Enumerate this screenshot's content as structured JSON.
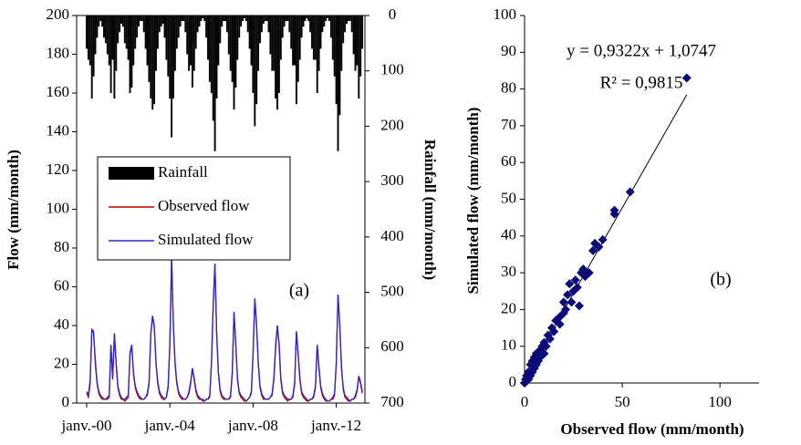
{
  "chart_data": [
    {
      "type": "line",
      "categories": [
        "janv.-00",
        null,
        null,
        null,
        null,
        null,
        null,
        null,
        null,
        null,
        null,
        null,
        null,
        null,
        null,
        null,
        null,
        null,
        null,
        null,
        null,
        null,
        null,
        null,
        null,
        null,
        null,
        null,
        null,
        null,
        null,
        null,
        null,
        null,
        null,
        null,
        null,
        null,
        null,
        null,
        null,
        null,
        null,
        null,
        null,
        null,
        null,
        null,
        "janv.-04",
        null,
        null,
        null,
        null,
        null,
        null,
        null,
        null,
        null,
        null,
        null,
        null,
        null,
        null,
        null,
        null,
        null,
        null,
        null,
        null,
        null,
        null,
        null,
        null,
        null,
        null,
        null,
        null,
        null,
        null,
        null,
        null,
        null,
        null,
        null,
        null,
        null,
        null,
        null,
        null,
        null,
        null,
        null,
        null,
        null,
        null,
        null,
        "janv.-08",
        null,
        null,
        null,
        null,
        null,
        null,
        null,
        null,
        null,
        null,
        null,
        null,
        null,
        null,
        null,
        null,
        null,
        null,
        null,
        null,
        null,
        null,
        null,
        null,
        null,
        null,
        null,
        null,
        null,
        null,
        null,
        null,
        null,
        null,
        null,
        null,
        null,
        null,
        null,
        null,
        null,
        null,
        null,
        null,
        null,
        null,
        null,
        "janv.-12",
        null,
        null,
        null,
        null,
        null,
        null,
        null,
        null,
        null,
        null,
        null,
        null,
        null,
        null,
        null
      ],
      "series": [
        {
          "name": "Rainfall",
          "type": "bar",
          "axis": "y2",
          "color": "#000000",
          "values": [
            60,
            80,
            90,
            150,
            110,
            70,
            40,
            20,
            10,
            20,
            40,
            50,
            70,
            90,
            140,
            80,
            150,
            100,
            50,
            30,
            15,
            20,
            50,
            60,
            80,
            140,
            130,
            90,
            60,
            40,
            20,
            10,
            10,
            30,
            60,
            90,
            120,
            150,
            170,
            160,
            100,
            60,
            30,
            20,
            15,
            40,
            80,
            110,
            150,
            220,
            150,
            100,
            60,
            40,
            20,
            10,
            10,
            30,
            70,
            100,
            90,
            130,
            100,
            60,
            30,
            20,
            10,
            5,
            10,
            40,
            80,
            120,
            140,
            190,
            245,
            150,
            90,
            50,
            20,
            10,
            10,
            30,
            70,
            100,
            120,
            170,
            130,
            80,
            40,
            20,
            10,
            5,
            10,
            30,
            60,
            90,
            140,
            200,
            160,
            100,
            50,
            30,
            15,
            10,
            10,
            30,
            70,
            100,
            100,
            150,
            170,
            140,
            80,
            40,
            20,
            10,
            10,
            30,
            60,
            90,
            90,
            160,
            120,
            80,
            40,
            20,
            10,
            5,
            10,
            30,
            60,
            80,
            80,
            140,
            100,
            60,
            30,
            20,
            10,
            5,
            10,
            40,
            80,
            110,
            160,
            245,
            180,
            100,
            50,
            30,
            15,
            10,
            10,
            30,
            70,
            100,
            90,
            150,
            110,
            60
          ]
        },
        {
          "name": "Observed flow",
          "color": "#c00000",
          "values": [
            5,
            3,
            10,
            38,
            37,
            20,
            10,
            5,
            3,
            2,
            2,
            2,
            2,
            3,
            30,
            12,
            36,
            20,
            8,
            4,
            2,
            2,
            1,
            2,
            3,
            25,
            30,
            15,
            8,
            5,
            3,
            2,
            2,
            2,
            3,
            4,
            10,
            35,
            45,
            40,
            20,
            10,
            5,
            3,
            2,
            2,
            3,
            8,
            30,
            75,
            40,
            20,
            10,
            5,
            3,
            2,
            2,
            2,
            3,
            5,
            10,
            18,
            12,
            6,
            3,
            2,
            2,
            1,
            1,
            2,
            2,
            3,
            20,
            50,
            72,
            35,
            15,
            6,
            3,
            2,
            2,
            2,
            2,
            3,
            15,
            47,
            30,
            12,
            5,
            3,
            2,
            1,
            1,
            2,
            3,
            5,
            25,
            54,
            40,
            20,
            8,
            4,
            2,
            2,
            2,
            2,
            3,
            4,
            12,
            28,
            40,
            30,
            12,
            5,
            3,
            2,
            1,
            2,
            2,
            3,
            10,
            37,
            25,
            12,
            5,
            3,
            2,
            1,
            1,
            2,
            2,
            3,
            8,
            30,
            18,
            8,
            4,
            2,
            1,
            1,
            1,
            2,
            2,
            4,
            20,
            56,
            40,
            18,
            7,
            3,
            2,
            1,
            1,
            2,
            2,
            3,
            6,
            14,
            10,
            5
          ]
        },
        {
          "name": "Simulated flow",
          "color": "#2828c8",
          "values": [
            6,
            4,
            12,
            38,
            36,
            22,
            11,
            6,
            4,
            3,
            2,
            2,
            3,
            4,
            30,
            13,
            36,
            21,
            9,
            5,
            3,
            2,
            2,
            3,
            4,
            26,
            30,
            16,
            9,
            6,
            4,
            3,
            2,
            2,
            3,
            5,
            11,
            36,
            45,
            39,
            21,
            11,
            6,
            4,
            3,
            2,
            3,
            9,
            31,
            75,
            41,
            21,
            11,
            6,
            4,
            3,
            2,
            2,
            3,
            6,
            11,
            18,
            13,
            7,
            4,
            3,
            2,
            2,
            1,
            2,
            2,
            4,
            21,
            51,
            72,
            36,
            16,
            7,
            4,
            3,
            2,
            2,
            2,
            4,
            16,
            47,
            31,
            13,
            6,
            4,
            3,
            2,
            1,
            2,
            3,
            6,
            26,
            54,
            41,
            21,
            9,
            5,
            3,
            2,
            2,
            2,
            3,
            5,
            13,
            30,
            40,
            31,
            13,
            6,
            4,
            3,
            2,
            2,
            2,
            4,
            11,
            37,
            26,
            13,
            6,
            4,
            3,
            2,
            1,
            2,
            2,
            4,
            9,
            30,
            19,
            9,
            5,
            3,
            2,
            1,
            1,
            2,
            3,
            5,
            21,
            56,
            41,
            19,
            8,
            4,
            3,
            2,
            1,
            2,
            2,
            4,
            7,
            14,
            11,
            6
          ]
        }
      ],
      "y_label": "Flow (mm/month)",
      "y2_label": "Rainfall (mm/month)",
      "ylim": [
        0,
        200
      ],
      "yticks": [
        0,
        20,
        40,
        60,
        80,
        100,
        120,
        140,
        160,
        180,
        200
      ],
      "y2lim": [
        0,
        700
      ],
      "y2ticks": [
        0,
        100,
        200,
        300,
        400,
        500,
        600,
        700
      ],
      "y2_inverted": true,
      "legend": "center left",
      "annotation": "(a)"
    },
    {
      "type": "scatter",
      "color": "#0a0a78",
      "x": [
        0,
        0.5,
        1,
        1,
        2,
        2,
        3,
        3,
        4,
        4,
        5,
        5,
        6,
        6,
        7,
        8,
        8,
        9,
        10,
        10,
        11,
        12,
        13,
        14,
        15,
        16,
        18,
        18,
        20,
        20,
        21,
        22,
        23,
        24,
        25,
        26,
        27,
        28,
        29,
        30,
        31,
        33,
        35,
        36,
        38,
        40,
        46,
        46,
        54,
        83
      ],
      "values": [
        0,
        1,
        2,
        0.5,
        3,
        1,
        5,
        2,
        6,
        3,
        7,
        4,
        5,
        8,
        6,
        9,
        7,
        10,
        11,
        8,
        10,
        13,
        12,
        15,
        14,
        17,
        16,
        18,
        19,
        22,
        20,
        24,
        27,
        22,
        25,
        28,
        26,
        21,
        30,
        31,
        29,
        30,
        36,
        38,
        37,
        39,
        46,
        47,
        52,
        83
      ],
      "x_label": "Observed flow (mm/month)",
      "y_label": "Simulated flow (mm/month)",
      "xlim": [
        0,
        120
      ],
      "xticks": [
        0,
        50,
        100
      ],
      "ylim": [
        0,
        100
      ],
      "yticks": [
        0,
        10,
        20,
        30,
        40,
        50,
        60,
        70,
        80,
        90,
        100
      ],
      "equation": "y = 0,9322x + 1,0747",
      "r2": "R² = 0,9815",
      "annotation": "(b)"
    }
  ]
}
